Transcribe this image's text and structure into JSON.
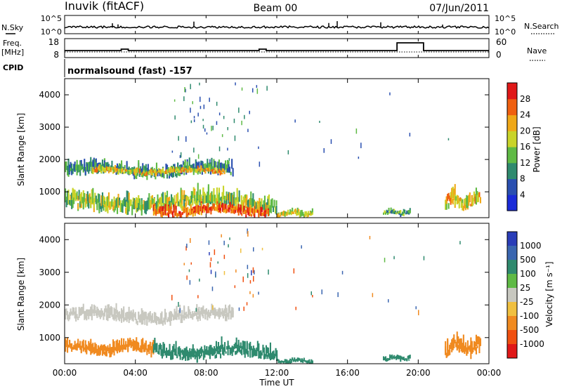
{
  "header": {
    "station": "Inuvik (fitACF)",
    "beam": "Beam 00",
    "date": "07/Jun/2011"
  },
  "strip_labels": {
    "nsky": "N.Sky",
    "freq": "Freq.",
    "freq_unit": "[MHz]",
    "cpid": "CPID",
    "nsearch": "N.Search",
    "nave": "Nave",
    "nsky_top": "10^5",
    "nsky_bottom": "10^0",
    "nsearch_top": "10^5",
    "nsearch_bottom": "10^0",
    "freq_top": "18",
    "freq_bottom": "8",
    "nave_top": "60",
    "nave_bottom": "0",
    "cpid_text": "normalsound (fast) -157"
  },
  "axes": {
    "ylabel": "Slant Range [km]",
    "xlabel": "Time UT",
    "yticks": [
      "1000",
      "2000",
      "3000",
      "4000"
    ],
    "xticks": [
      "00:00",
      "04:00",
      "08:00",
      "12:00",
      "16:00",
      "20:00",
      "00:00"
    ]
  },
  "power_scale": {
    "label": "Power [dB]",
    "ticks": [
      "4",
      "8",
      "12",
      "16",
      "20",
      "24",
      "28"
    ],
    "colors": [
      "#1a2bd8",
      "#2a4fb0",
      "#2f8a6e",
      "#5fba45",
      "#c9d42a",
      "#f0a818",
      "#f06010",
      "#e01818"
    ]
  },
  "velocity_scale": {
    "label": "Velocity [m s⁻¹]",
    "ticks": [
      "1000",
      "500",
      "100",
      "25",
      "-25",
      "-100",
      "-500",
      "-1000"
    ],
    "colors": [
      "#2a3db8",
      "#3a66b0",
      "#2f8a6e",
      "#5fba45",
      "#c8c8c0",
      "#f0c040",
      "#f08a20",
      "#f05010",
      "#e01818"
    ]
  },
  "chart_data": [
    {
      "type": "heatmap",
      "title": "Power",
      "xlabel": "Time UT",
      "ylabel": "Slant Range [km]",
      "xlim": [
        0,
        24
      ],
      "ylim": [
        200,
        4500
      ],
      "colorbar_label": "Power [dB]",
      "colorbar_range": [
        0,
        32
      ],
      "regions": [
        {
          "t_start": 0.0,
          "t_end": 9.5,
          "r_low": 1400,
          "r_high": 2000,
          "level": 10
        },
        {
          "t_start": 1.5,
          "t_end": 9.0,
          "r_low": 1500,
          "r_high": 1800,
          "level": 20
        },
        {
          "t_start": 0.0,
          "t_end": 12.0,
          "r_low": 300,
          "r_high": 1100,
          "level": 16
        },
        {
          "t_start": 5.0,
          "t_end": 11.5,
          "r_low": 200,
          "r_high": 700,
          "level": 26
        },
        {
          "t_start": 12.0,
          "t_end": 14.0,
          "r_low": 200,
          "r_high": 500,
          "level": 18
        },
        {
          "t_start": 18.0,
          "t_end": 19.5,
          "r_low": 250,
          "r_high": 500,
          "level": 12
        },
        {
          "t_start": 21.5,
          "t_end": 23.5,
          "r_low": 400,
          "r_high": 1100,
          "level": 20
        }
      ]
    },
    {
      "type": "heatmap",
      "title": "Velocity",
      "xlabel": "Time UT",
      "ylabel": "Slant Range [km]",
      "xlim": [
        0,
        24
      ],
      "ylim": [
        200,
        4500
      ],
      "colorbar_label": "Velocity [m s⁻¹]",
      "colorbar_range": [
        -1000,
        1000
      ],
      "regions": [
        {
          "t_start": 0.0,
          "t_end": 9.5,
          "r_low": 1400,
          "r_high": 2000,
          "level": 0
        },
        {
          "t_start": 0.0,
          "t_end": 5.0,
          "r_low": 400,
          "r_high": 1000,
          "level": -200
        },
        {
          "t_start": 5.0,
          "t_end": 12.0,
          "r_low": 300,
          "r_high": 900,
          "level": 100
        },
        {
          "t_start": 12.0,
          "t_end": 14.0,
          "r_low": 200,
          "r_high": 400,
          "level": 100
        },
        {
          "t_start": 18.0,
          "t_end": 19.5,
          "r_low": 250,
          "r_high": 500,
          "level": 100
        },
        {
          "t_start": 21.5,
          "t_end": 23.5,
          "r_low": 400,
          "r_high": 1100,
          "level": -100
        }
      ]
    }
  ]
}
